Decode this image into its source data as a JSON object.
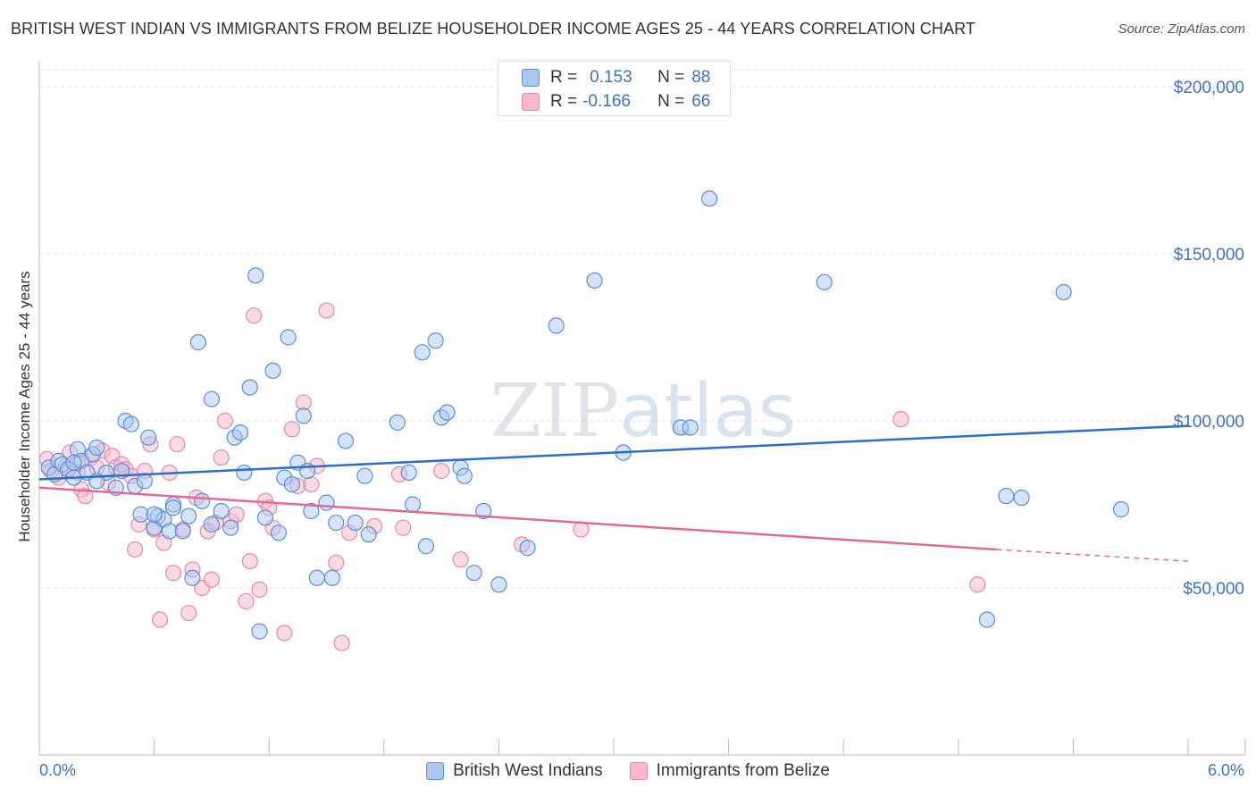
{
  "title": "BRITISH WEST INDIAN VS IMMIGRANTS FROM BELIZE HOUSEHOLDER INCOME AGES 25 - 44 YEARS CORRELATION CHART",
  "source": "Source: ZipAtlas.com",
  "watermark": "ZIPatlas",
  "legend": {
    "rows": [
      {
        "r_label": "R =",
        "r_value": "0.153",
        "n_label": "N =",
        "n_value": "88"
      },
      {
        "r_label": "R =",
        "r_value": "-0.166",
        "n_label": "N =",
        "n_value": "66"
      }
    ]
  },
  "colors": {
    "blue_fill": "#a9c8f0",
    "blue_stroke": "#5b8fd4",
    "blue_line": "#2a6fc9",
    "pink_fill": "#f5b8cc",
    "pink_stroke": "#e48aa8",
    "pink_line": "#e0699a",
    "axis_text": "#3b73c4",
    "grid": "#e3e3e3"
  },
  "chart_data": {
    "type": "scatter",
    "title": "BRITISH WEST INDIAN VS IMMIGRANTS FROM BELIZE HOUSEHOLDER INCOME AGES 25 - 44 YEARS CORRELATION CHART",
    "xlabel": "",
    "ylabel": "Householder Income Ages 25 - 44 years",
    "x_tick_labels": {
      "min": "0.0%",
      "max": "6.0%"
    },
    "xlim": [
      0,
      6
    ],
    "ylim": [
      0,
      210000
    ],
    "y_ticks": [
      50000,
      100000,
      150000,
      200000
    ],
    "y_tick_labels": [
      "$50,000",
      "$100,000",
      "$150,000",
      "$200,000"
    ],
    "grid": true,
    "legend_position": "top-center",
    "series": [
      {
        "name": "British West Indians",
        "r": 0.153,
        "n": 88,
        "trend": {
          "x0": 0,
          "y0": 82500,
          "x1": 6,
          "y1": 98500
        },
        "points": [
          [
            0.05,
            86000
          ],
          [
            0.08,
            84000
          ],
          [
            0.1,
            88000
          ],
          [
            0.12,
            87000
          ],
          [
            0.15,
            85500
          ],
          [
            0.18,
            83000
          ],
          [
            0.2,
            91500
          ],
          [
            0.22,
            88000
          ],
          [
            0.25,
            84500
          ],
          [
            0.28,
            90000
          ],
          [
            0.3,
            92000
          ],
          [
            0.4,
            80000
          ],
          [
            0.45,
            100000
          ],
          [
            0.48,
            99000
          ],
          [
            0.5,
            80500
          ],
          [
            0.53,
            72000
          ],
          [
            0.55,
            82000
          ],
          [
            0.57,
            95000
          ],
          [
            0.6,
            68000
          ],
          [
            0.62,
            71500
          ],
          [
            0.65,
            70500
          ],
          [
            0.68,
            67000
          ],
          [
            0.7,
            75000
          ],
          [
            0.78,
            71500
          ],
          [
            0.8,
            53000
          ],
          [
            0.85,
            76000
          ],
          [
            0.9,
            69000
          ],
          [
            0.75,
            67000
          ],
          [
            0.83,
            123500
          ],
          [
            0.9,
            106500
          ],
          [
            0.95,
            73000
          ],
          [
            1.02,
            95000
          ],
          [
            1.05,
            96500
          ],
          [
            1.07,
            84500
          ],
          [
            1.1,
            110000
          ],
          [
            1.13,
            143500
          ],
          [
            1.15,
            37000
          ],
          [
            1.18,
            71000
          ],
          [
            1.22,
            115000
          ],
          [
            1.25,
            66500
          ],
          [
            1.28,
            83000
          ],
          [
            1.3,
            125000
          ],
          [
            1.32,
            81000
          ],
          [
            1.35,
            87500
          ],
          [
            1.38,
            101500
          ],
          [
            1.4,
            85000
          ],
          [
            1.42,
            73000
          ],
          [
            1.45,
            53000
          ],
          [
            1.5,
            75500
          ],
          [
            1.53,
            53000
          ],
          [
            1.55,
            69500
          ],
          [
            1.6,
            94000
          ],
          [
            1.65,
            69500
          ],
          [
            1.7,
            83500
          ],
          [
            1.72,
            66000
          ],
          [
            1.87,
            99500
          ],
          [
            1.93,
            84500
          ],
          [
            1.95,
            75000
          ],
          [
            2.0,
            120500
          ],
          [
            2.02,
            62500
          ],
          [
            2.07,
            124000
          ],
          [
            2.1,
            101000
          ],
          [
            2.13,
            102500
          ],
          [
            2.2,
            86000
          ],
          [
            2.22,
            83500
          ],
          [
            2.27,
            54500
          ],
          [
            2.32,
            73000
          ],
          [
            2.4,
            51000
          ],
          [
            2.55,
            62000
          ],
          [
            2.7,
            128500
          ],
          [
            2.9,
            142000
          ],
          [
            3.05,
            90500
          ],
          [
            3.35,
            98000
          ],
          [
            3.4,
            98000
          ],
          [
            3.5,
            166500
          ],
          [
            4.1,
            141500
          ],
          [
            4.95,
            40500
          ],
          [
            5.05,
            77500
          ],
          [
            5.13,
            77000
          ],
          [
            5.35,
            138500
          ],
          [
            5.65,
            73500
          ],
          [
            0.35,
            84500
          ],
          [
            0.43,
            85000
          ],
          [
            0.3,
            82000
          ],
          [
            0.18,
            87500
          ],
          [
            0.7,
            74000
          ],
          [
            1.0,
            68000
          ],
          [
            0.6,
            72000
          ]
        ]
      },
      {
        "name": "Immigrants from Belize",
        "r": -0.166,
        "n": 66,
        "trend": {
          "x0": 0,
          "y0": 80000,
          "x1": 5.0,
          "y1": 61500
        },
        "trend_dashed": {
          "x0": 5.0,
          "y0": 61500,
          "x1": 6.0,
          "y1": 58000
        },
        "points": [
          [
            0.04,
            88500
          ],
          [
            0.06,
            85000
          ],
          [
            0.1,
            83000
          ],
          [
            0.14,
            86500
          ],
          [
            0.16,
            90500
          ],
          [
            0.2,
            84500
          ],
          [
            0.22,
            79500
          ],
          [
            0.24,
            77500
          ],
          [
            0.27,
            89000
          ],
          [
            0.3,
            86000
          ],
          [
            0.33,
            91000
          ],
          [
            0.36,
            81500
          ],
          [
            0.38,
            89500
          ],
          [
            0.4,
            86000
          ],
          [
            0.43,
            87000
          ],
          [
            0.45,
            85500
          ],
          [
            0.48,
            83500
          ],
          [
            0.5,
            61500
          ],
          [
            0.52,
            69000
          ],
          [
            0.55,
            85000
          ],
          [
            0.58,
            93000
          ],
          [
            0.6,
            67500
          ],
          [
            0.63,
            40500
          ],
          [
            0.65,
            63500
          ],
          [
            0.68,
            84500
          ],
          [
            0.7,
            54500
          ],
          [
            0.72,
            93000
          ],
          [
            0.75,
            67500
          ],
          [
            0.78,
            42500
          ],
          [
            0.8,
            55500
          ],
          [
            0.82,
            77000
          ],
          [
            0.85,
            50000
          ],
          [
            0.88,
            67000
          ],
          [
            0.9,
            52500
          ],
          [
            0.92,
            69500
          ],
          [
            0.95,
            89000
          ],
          [
            0.97,
            100000
          ],
          [
            1.0,
            70000
          ],
          [
            1.03,
            72000
          ],
          [
            1.08,
            46000
          ],
          [
            1.1,
            58000
          ],
          [
            1.12,
            131500
          ],
          [
            1.15,
            49500
          ],
          [
            1.18,
            76000
          ],
          [
            1.2,
            74000
          ],
          [
            1.22,
            68000
          ],
          [
            1.28,
            36500
          ],
          [
            1.32,
            97500
          ],
          [
            1.35,
            80500
          ],
          [
            1.38,
            105500
          ],
          [
            1.42,
            81000
          ],
          [
            1.45,
            86500
          ],
          [
            1.5,
            133000
          ],
          [
            1.55,
            57500
          ],
          [
            1.58,
            33500
          ],
          [
            1.62,
            66500
          ],
          [
            1.75,
            68500
          ],
          [
            1.88,
            84000
          ],
          [
            1.9,
            68000
          ],
          [
            2.1,
            85000
          ],
          [
            2.2,
            58500
          ],
          [
            2.52,
            63000
          ],
          [
            2.83,
            67500
          ],
          [
            4.5,
            100500
          ],
          [
            4.9,
            51000
          ],
          [
            0.2,
            87500
          ]
        ]
      }
    ]
  }
}
